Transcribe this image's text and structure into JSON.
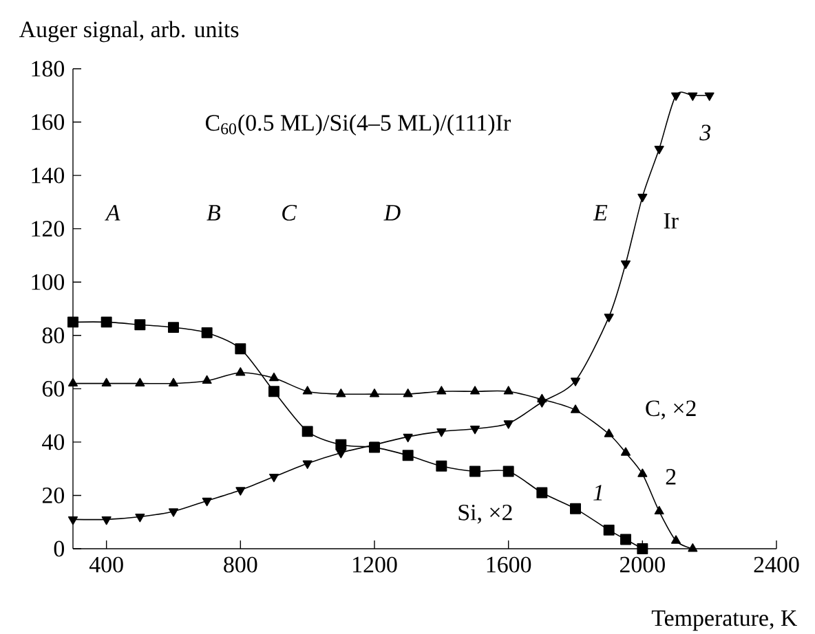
{
  "chart_data": {
    "type": "line",
    "xlabel": "Temperature, K",
    "ylabel": "Auger signal, arb. units",
    "xlim": [
      300,
      2400
    ],
    "xticks": [
      400,
      800,
      1200,
      1600,
      2000,
      2400
    ],
    "ylim": [
      0,
      180
    ],
    "yticks": [
      0,
      20,
      40,
      60,
      80,
      100,
      120,
      140,
      160,
      180
    ],
    "grid": false,
    "series": [
      {
        "name": "Si, ×2",
        "color": "#000000",
        "marker": "square",
        "x": [
          300,
          400,
          500,
          600,
          700,
          800,
          900,
          1000,
          1100,
          1200,
          1300,
          1400,
          1500,
          1600,
          1700,
          1800,
          1900,
          1950,
          2000
        ],
        "values": [
          85,
          85,
          84,
          83,
          81,
          75,
          59,
          44,
          39,
          38,
          35,
          31,
          29,
          29,
          21,
          15,
          7,
          3.5,
          0
        ]
      },
      {
        "name": "C, ×2",
        "color": "#000000",
        "marker": "triangle",
        "x": [
          300,
          400,
          500,
          600,
          700,
          800,
          900,
          1000,
          1100,
          1200,
          1300,
          1400,
          1500,
          1600,
          1700,
          1800,
          1900,
          1950,
          2000,
          2050,
          2100,
          2150
        ],
        "values": [
          62,
          62,
          62,
          62,
          63,
          66,
          64,
          59,
          58,
          58,
          58,
          59,
          59,
          59,
          56,
          52,
          43,
          36,
          28,
          14,
          3,
          0
        ]
      },
      {
        "name": "Ir",
        "color": "#000000",
        "marker": "triangle-down",
        "x": [
          300,
          400,
          500,
          600,
          700,
          800,
          900,
          1000,
          1100,
          1200,
          1300,
          1400,
          1500,
          1600,
          1700,
          1800,
          1900,
          1950,
          2000,
          2050,
          2100,
          2150,
          2200
        ],
        "values": [
          11,
          11,
          12,
          14,
          18,
          22,
          27,
          32,
          36,
          39,
          42,
          44,
          45,
          47,
          55,
          63,
          87,
          107,
          132,
          150,
          170,
          170,
          170
        ]
      }
    ],
    "annotations": [
      "C$_{60}$(0.5 ML)/Si(4–5 ML)/(111)Ir",
      "*A*",
      "*B*",
      "*C*",
      "*D*",
      "*E*",
      "*1*",
      "2",
      "*3*"
    ]
  }
}
